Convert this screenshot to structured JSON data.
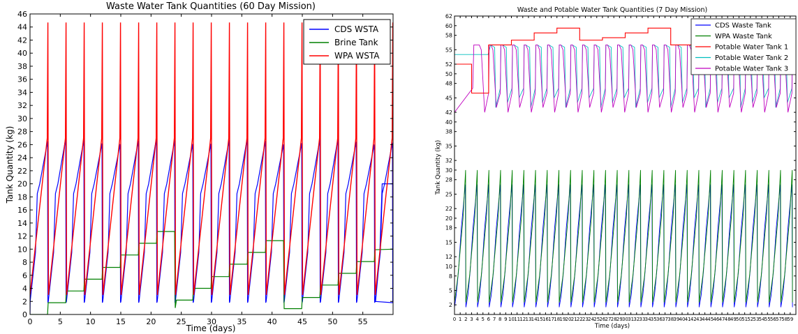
{
  "chart_data": [
    {
      "type": "line",
      "title": "Waste Water Tank Quantities (60 Day Mission)",
      "xlabel": "Time (days)",
      "ylabel": "Tank Quantity (kg)",
      "xlim": [
        0,
        60
      ],
      "ylim": [
        0,
        46
      ],
      "xticks": [
        "0",
        "5",
        "10",
        "15",
        "20",
        "25",
        "30",
        "35",
        "40",
        "45",
        "50",
        "55"
      ],
      "yticks": [
        "0",
        "2",
        "4",
        "6",
        "8",
        "10",
        "12",
        "14",
        "16",
        "18",
        "20",
        "22",
        "24",
        "26",
        "28",
        "30",
        "32",
        "34",
        "36",
        "38",
        "40",
        "42",
        "44",
        "46"
      ],
      "legend_position": "top-right",
      "grid": false,
      "series": [
        {
          "name": "CDS WSTA",
          "color": "#0000ff",
          "pattern": "sawtooth",
          "period_days": 3.0,
          "min": 1.8,
          "max": 27,
          "x_end": 60,
          "y_end": 20
        },
        {
          "name": "Brine Tank",
          "color": "#008000",
          "pattern": "staircase",
          "levels_start": [
            0,
            1.8,
            3.6,
            5.4,
            7.2,
            9.1,
            10.9,
            12.7
          ],
          "cycle_resets_day": [
            24,
            42
          ],
          "x_end": 60,
          "y_end": 10
        },
        {
          "name": "WPA WSTA",
          "color": "#ff0000",
          "pattern": "spike",
          "period_days": 3.0,
          "min": 3.0,
          "max": 44.7,
          "x_end": 60,
          "y_end": 26
        }
      ]
    },
    {
      "type": "line",
      "title": "Waste and Potable Water Tank Quantities (7 Day Mission)",
      "xlabel": "Time (days)",
      "ylabel": "Tank Quantity (kg)",
      "xlim": [
        0,
        60
      ],
      "ylim": [
        0,
        62
      ],
      "xticks": [
        "0",
        "1",
        "2",
        "3",
        "4",
        "5",
        "6",
        "7",
        "8",
        "9",
        "10",
        "11",
        "12",
        "13",
        "14",
        "15",
        "16",
        "17",
        "18",
        "19",
        "20",
        "21",
        "22",
        "23",
        "24",
        "25",
        "26",
        "27",
        "28",
        "29",
        "30",
        "31",
        "32",
        "33",
        "34",
        "35",
        "36",
        "37",
        "38",
        "39",
        "40",
        "41",
        "42",
        "43",
        "44",
        "45",
        "46",
        "47",
        "48",
        "49",
        "50",
        "51",
        "52",
        "53",
        "54",
        "55",
        "56",
        "57",
        "58",
        "59"
      ],
      "yticks": [
        "2",
        "5",
        "8",
        "10",
        "12",
        "15",
        "18",
        "20",
        "22",
        "25",
        "28",
        "30",
        "32",
        "35",
        "38",
        "40",
        "42",
        "45",
        "48",
        "50",
        "52",
        "55",
        "58",
        "60",
        "62"
      ],
      "legend_position": "top-right",
      "grid": false,
      "series": [
        {
          "name": "CDS Waste Tank",
          "color": "#0000ff",
          "pattern": "sawtooth",
          "period_days": 2.05,
          "min": 1.5,
          "max": 27.5
        },
        {
          "name": "WPA Waste Tank",
          "color": "#008000",
          "pattern": "sawtooth",
          "period_days": 2.05,
          "min": 2.5,
          "max": 30
        },
        {
          "name": "Potable Water Tank 1",
          "color": "#ff0000",
          "pattern": "stairs",
          "x": [
            0,
            3,
            6,
            10,
            14,
            18,
            22,
            26,
            30,
            34,
            38,
            42,
            46,
            50,
            54
          ],
          "y": [
            52,
            46,
            56,
            57,
            58.5,
            59.5,
            57,
            57.5,
            58.5,
            59.5,
            56,
            57.5,
            58,
            57.5,
            60
          ]
        },
        {
          "name": "Potable Water Tank 2",
          "color": "#00bfbf",
          "pattern": "sawtooth",
          "period_days": 2.05,
          "min": 40,
          "max": 56
        },
        {
          "name": "Potable Water Tank 3",
          "color": "#bf00bf",
          "pattern": "sawtooth",
          "period_days": 2.05,
          "min": 41,
          "max": 56
        }
      ]
    }
  ]
}
